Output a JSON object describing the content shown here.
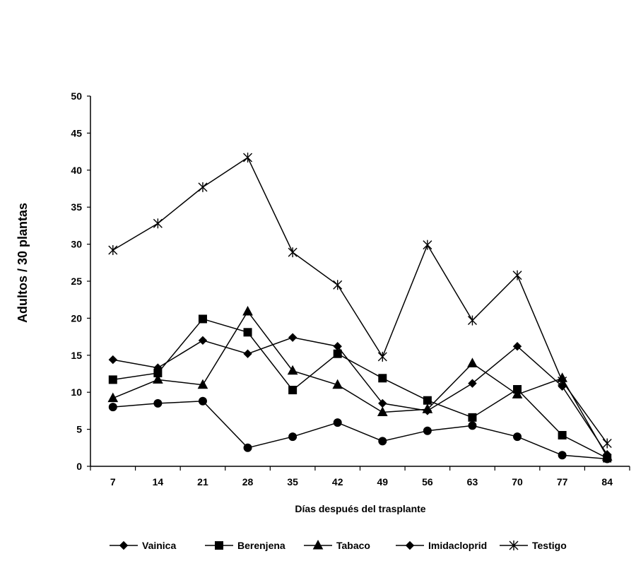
{
  "chart_data": {
    "type": "line",
    "title": "",
    "xlabel": "Días después del trasplante",
    "ylabel": "Adultos / 30 plantas",
    "categories": [
      "7",
      "14",
      "21",
      "28",
      "35",
      "42",
      "49",
      "56",
      "63",
      "70",
      "77",
      "84"
    ],
    "ylim": [
      0,
      50
    ],
    "yticks": [
      "0",
      "5",
      "10",
      "15",
      "20",
      "25",
      "30",
      "35",
      "40",
      "45",
      "50"
    ],
    "grid": false,
    "legend_position": "bottom",
    "series": [
      {
        "name": "Vainica",
        "marker": "diamond",
        "values": [
          14.4,
          13.3,
          17.0,
          15.2,
          17.4,
          16.2,
          8.5,
          7.5,
          11.2,
          16.2,
          10.8,
          1.6
        ]
      },
      {
        "name": "Berenjena",
        "marker": "square",
        "values": [
          11.7,
          12.6,
          19.9,
          18.1,
          10.3,
          15.2,
          11.9,
          8.9,
          6.6,
          10.4,
          4.2,
          1.1
        ]
      },
      {
        "name": "Tabaco",
        "marker": "triangle",
        "values": [
          9.2,
          11.7,
          11.0,
          20.9,
          12.9,
          11.0,
          7.3,
          7.7,
          13.9,
          9.7,
          11.9,
          1.3
        ]
      },
      {
        "name": "Imidacloprid",
        "marker": "circle",
        "legend_marker": "diamond",
        "values": [
          8.0,
          8.5,
          8.8,
          2.5,
          4.0,
          5.9,
          3.4,
          4.8,
          5.5,
          4.0,
          1.5,
          1.0
        ]
      },
      {
        "name": "Testigo",
        "marker": "star",
        "values": [
          29.2,
          32.8,
          37.7,
          41.7,
          28.9,
          24.5,
          14.8,
          29.9,
          19.7,
          25.8,
          11.5,
          3.1
        ]
      }
    ],
    "color": "#000000"
  }
}
